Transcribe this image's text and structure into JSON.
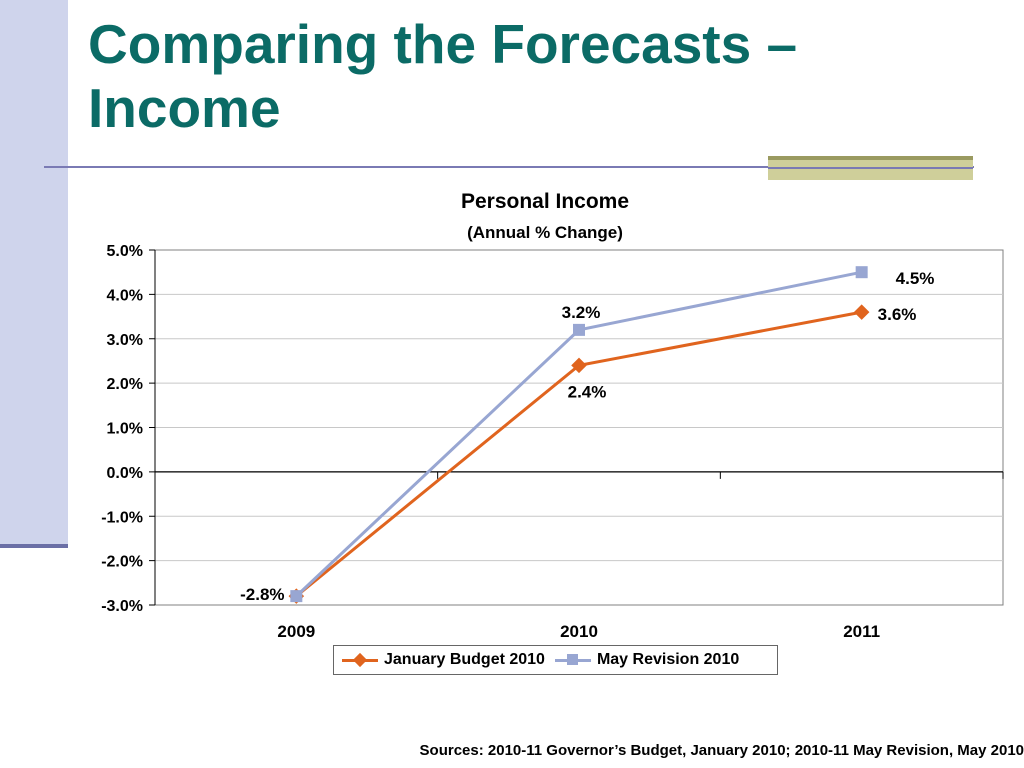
{
  "slide": {
    "title_line1": "Comparing the Forecasts –",
    "title_line2": "Income",
    "source": "Sources: 2010-11 Governor’s Budget, January 2010; 2010-11 May Revision, May 2010"
  },
  "colors": {
    "title": "#0b6b66",
    "january": "#e0641e",
    "may": "#98a6d2",
    "accent_band": "#cfd4ec"
  },
  "chart_data": {
    "type": "line",
    "title": "Personal Income",
    "subtitle": "(Annual % Change)",
    "xlabel": "",
    "ylabel": "",
    "categories": [
      "2009",
      "2010",
      "2011"
    ],
    "ylim": [
      -3.0,
      5.0
    ],
    "yticks": [
      "5.0%",
      "4.0%",
      "3.0%",
      "2.0%",
      "1.0%",
      "0.0%",
      "-1.0%",
      "-2.0%",
      "-3.0%"
    ],
    "ytick_values": [
      5,
      4,
      3,
      2,
      1,
      0,
      -1,
      -2,
      -3
    ],
    "grid": true,
    "legend_position": "bottom",
    "series": [
      {
        "name": "January Budget 2010",
        "values": [
          -2.8,
          2.4,
          3.6
        ],
        "labels": [
          "",
          "2.4%",
          "3.6%"
        ],
        "marker": "diamond",
        "color": "#e0641e"
      },
      {
        "name": "May Revision 2010",
        "values": [
          -2.8,
          3.2,
          4.5
        ],
        "labels": [
          "-2.8%",
          "3.2%",
          "4.5%"
        ],
        "marker": "square",
        "color": "#98a6d2"
      }
    ]
  }
}
